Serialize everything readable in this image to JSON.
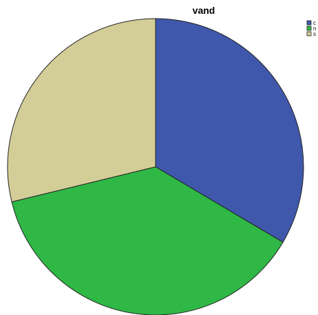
{
  "chart_data": {
    "type": "pie",
    "title": "vand",
    "categories": [
      "c",
      "n",
      "s"
    ],
    "values": [
      33.5,
      37.7,
      28.8
    ],
    "colors": [
      "#3f58ab",
      "#2fb845",
      "#d3cd97"
    ],
    "start_angle_deg": 0,
    "direction": "clockwise",
    "legend_position": "top-right"
  }
}
